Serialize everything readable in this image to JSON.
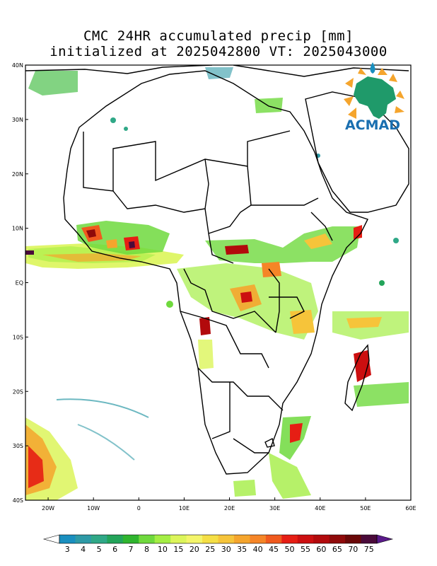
{
  "title": {
    "line1": "CMC 24HR accumulated precip [mm]",
    "line2": "initialized at 2025042800 VT: 2025043000"
  },
  "logo": {
    "text": "ACMAD"
  },
  "axes": {
    "lat_labels": [
      "40N",
      "30N",
      "20N",
      "10N",
      "EQ",
      "10S",
      "20S",
      "30S",
      "40S"
    ],
    "lon_labels": [
      "20W",
      "10W",
      "0",
      "10E",
      "20E",
      "30E",
      "40E",
      "50E",
      "60E"
    ]
  },
  "colorbar": {
    "labels": [
      "3",
      "4",
      "5",
      "6",
      "7",
      "8",
      "10",
      "15",
      "20",
      "25",
      "30",
      "35",
      "40",
      "45",
      "50",
      "55",
      "60",
      "65",
      "70",
      "75"
    ],
    "colors": [
      "#1a8fbf",
      "#2e9aa6",
      "#2fa887",
      "#23a45a",
      "#2fb52e",
      "#6fd93d",
      "#a4ee44",
      "#dcf55a",
      "#f4f56a",
      "#f5df45",
      "#f6c43a",
      "#f5a52d",
      "#f58527",
      "#f05a1e",
      "#e61e14",
      "#cc0f10",
      "#b20a0c",
      "#8f0a0a",
      "#6a0808",
      "#4a0a3a"
    ],
    "low_color": "#ffffff",
    "high_color": "#5a1a8a"
  }
}
